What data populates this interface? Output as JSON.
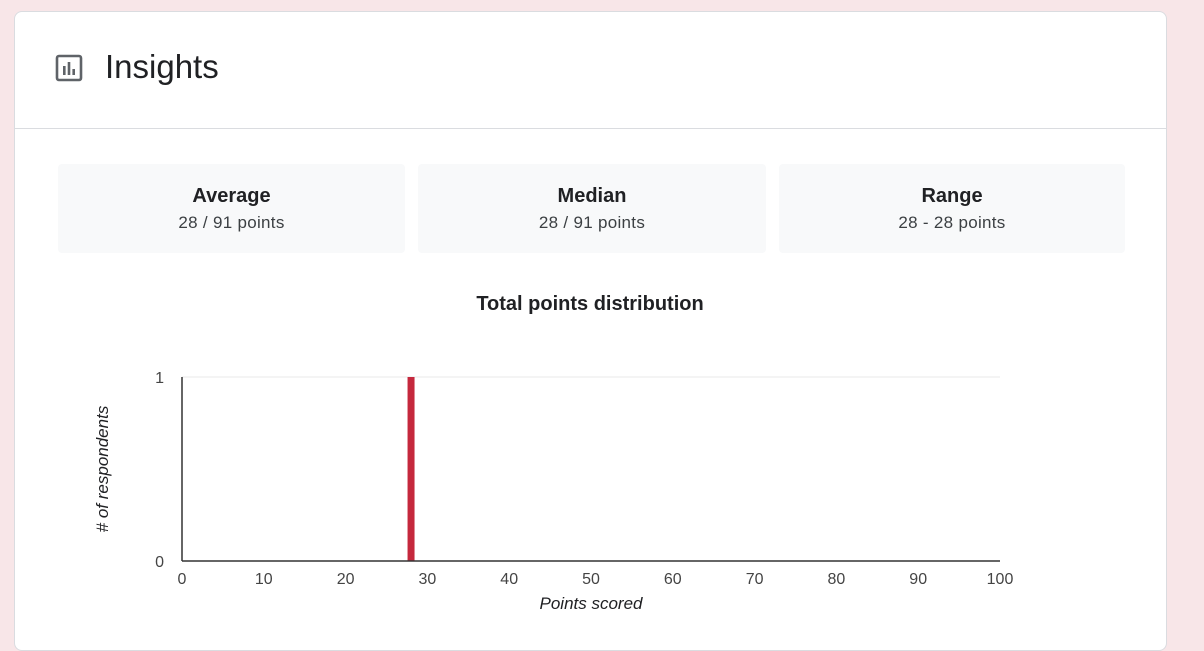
{
  "header": {
    "title": "Insights",
    "icon": "bar-chart-box-icon"
  },
  "stats": [
    {
      "label": "Average",
      "value": "28 / 91 points"
    },
    {
      "label": "Median",
      "value": "28 / 91 points"
    },
    {
      "label": "Range",
      "value": "28 - 28 points"
    }
  ],
  "colors": {
    "bar": "#c5283d",
    "page_background": "#f8e6e8"
  },
  "chart_data": {
    "type": "bar",
    "title": "Total points distribution",
    "xlabel": "Points scored",
    "ylabel": "# of respondents",
    "xlim": [
      0,
      100
    ],
    "ylim": [
      0,
      1
    ],
    "x_ticks": [
      0,
      10,
      20,
      30,
      40,
      50,
      60,
      70,
      80,
      90,
      100
    ],
    "y_ticks": [
      0,
      1
    ],
    "bars": [
      {
        "x": 28,
        "y": 1
      }
    ],
    "grid": true,
    "legend": "none"
  }
}
